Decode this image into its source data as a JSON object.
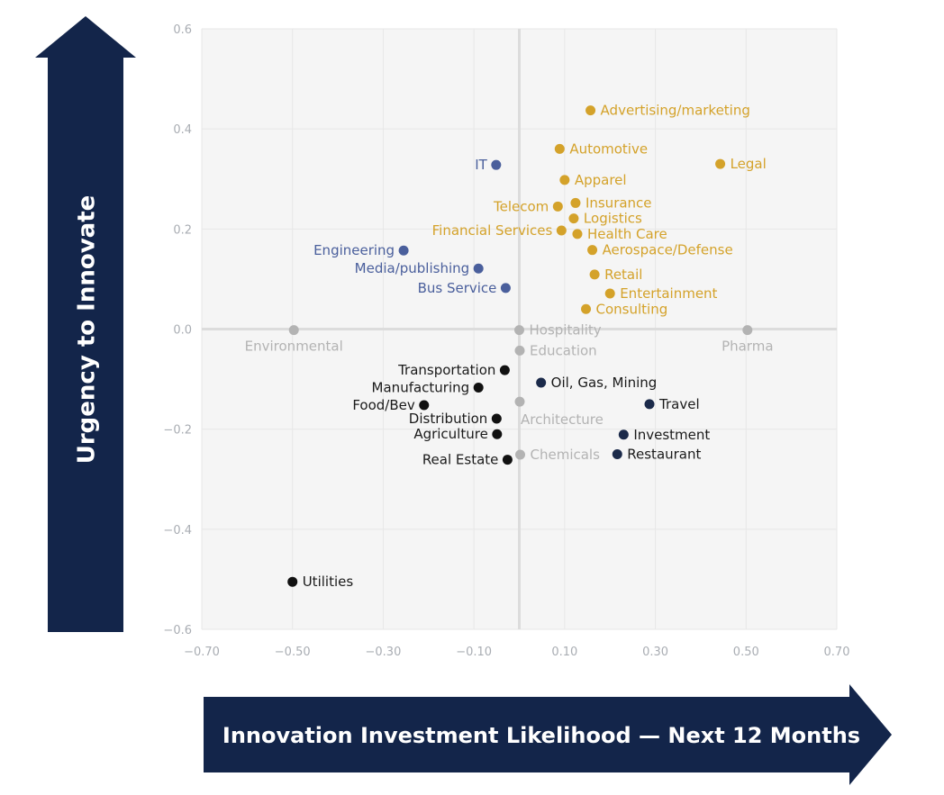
{
  "chart_data": {
    "type": "scatter",
    "xlabel": "Innovation Investment Likelihood — Next 12 Months",
    "ylabel": "Urgency to Innovate",
    "xlim": [
      -0.7,
      0.7
    ],
    "ylim": [
      -0.6,
      0.6
    ],
    "x_ticks": [
      -0.7,
      -0.5,
      -0.3,
      -0.1,
      0.1,
      0.3,
      0.5,
      0.7
    ],
    "x_tick_labels": [
      "−0.70",
      "−0.50",
      "−0.30",
      "−0.10",
      "0.10",
      "0.30",
      "0.50",
      "0.70"
    ],
    "y_ticks": [
      0.6,
      0.4,
      0.2,
      0.0,
      -0.2,
      -0.4,
      -0.6
    ],
    "y_tick_labels": [
      "0.6",
      "0.4",
      "0.2",
      "0.0",
      "−0.2",
      "−0.4",
      "−0.6"
    ],
    "grid": true,
    "colors": {
      "gold": "#d4a22a",
      "blue": "#4a5f9c",
      "gray": "#b3b3b3",
      "navy": "#1b2a4a",
      "black": "#111111",
      "plot_bg": "#f5f5f5",
      "grid": "#e7e7e7",
      "zero_line": "#dcdcdc",
      "arrow": "#13254a"
    },
    "points": [
      {
        "label": "Advertising/marketing",
        "x": 0.157,
        "y": 0.437,
        "color": "gold",
        "label_pos": "right"
      },
      {
        "label": "Automotive",
        "x": 0.089,
        "y": 0.36,
        "color": "gold",
        "label_pos": "right"
      },
      {
        "label": "Legal",
        "x": 0.443,
        "y": 0.33,
        "color": "gold",
        "label_pos": "right"
      },
      {
        "label": "Apparel",
        "x": 0.1,
        "y": 0.298,
        "color": "gold",
        "label_pos": "right"
      },
      {
        "label": "Telecom",
        "x": 0.085,
        "y": 0.245,
        "color": "gold",
        "label_pos": "left"
      },
      {
        "label": "Insurance",
        "x": 0.124,
        "y": 0.252,
        "color": "gold",
        "label_pos": "right"
      },
      {
        "label": "Logistics",
        "x": 0.12,
        "y": 0.221,
        "color": "gold",
        "label_pos": "right"
      },
      {
        "label": "Financial Services",
        "x": 0.093,
        "y": 0.197,
        "color": "gold",
        "label_pos": "left"
      },
      {
        "label": "Health Care",
        "x": 0.128,
        "y": 0.19,
        "color": "gold",
        "label_pos": "right"
      },
      {
        "label": "Aerospace/Defense",
        "x": 0.161,
        "y": 0.158,
        "color": "gold",
        "label_pos": "right"
      },
      {
        "label": "Retail",
        "x": 0.166,
        "y": 0.109,
        "color": "gold",
        "label_pos": "right"
      },
      {
        "label": "Entertainment",
        "x": 0.2,
        "y": 0.071,
        "color": "gold",
        "label_pos": "right"
      },
      {
        "label": "Consulting",
        "x": 0.147,
        "y": 0.04,
        "color": "gold",
        "label_pos": "right"
      },
      {
        "label": "IT",
        "x": -0.051,
        "y": 0.328,
        "color": "blue",
        "label_pos": "left"
      },
      {
        "label": "Engineering",
        "x": -0.255,
        "y": 0.157,
        "color": "blue",
        "label_pos": "left"
      },
      {
        "label": "Media/publishing",
        "x": -0.09,
        "y": 0.121,
        "color": "blue",
        "label_pos": "left"
      },
      {
        "label": "Bus Service",
        "x": -0.03,
        "y": 0.082,
        "color": "blue",
        "label_pos": "left"
      },
      {
        "label": "Environmental",
        "x": -0.497,
        "y": -0.002,
        "color": "gray",
        "label_pos": "below"
      },
      {
        "label": "Hospitality",
        "x": 0.0,
        "y": -0.002,
        "color": "gray",
        "label_pos": "right"
      },
      {
        "label": "Pharma",
        "x": 0.503,
        "y": -0.002,
        "color": "gray",
        "label_pos": "below"
      },
      {
        "label": "Education",
        "x": 0.001,
        "y": -0.043,
        "color": "gray",
        "label_pos": "right"
      },
      {
        "label": "Architecture",
        "x": 0.001,
        "y": -0.145,
        "color": "gray",
        "label_pos": "below-right"
      },
      {
        "label": "Chemicals",
        "x": 0.002,
        "y": -0.251,
        "color": "gray",
        "label_pos": "right"
      },
      {
        "label": "Transportation",
        "x": -0.032,
        "y": -0.082,
        "color": "black",
        "label_pos": "left"
      },
      {
        "label": "Manufacturing",
        "x": -0.09,
        "y": -0.117,
        "color": "black",
        "label_pos": "left"
      },
      {
        "label": "Food/Bev",
        "x": -0.21,
        "y": -0.152,
        "color": "black",
        "label_pos": "left"
      },
      {
        "label": "Distribution",
        "x": -0.05,
        "y": -0.179,
        "color": "black",
        "label_pos": "left"
      },
      {
        "label": "Agriculture",
        "x": -0.049,
        "y": -0.21,
        "color": "black",
        "label_pos": "left"
      },
      {
        "label": "Real Estate",
        "x": -0.026,
        "y": -0.261,
        "color": "black",
        "label_pos": "left"
      },
      {
        "label": "Utilities",
        "x": -0.5,
        "y": -0.505,
        "color": "black",
        "label_pos": "right"
      },
      {
        "label": "Oil, Gas, Mining",
        "x": 0.048,
        "y": -0.107,
        "color": "navy",
        "label_pos": "right"
      },
      {
        "label": "Travel",
        "x": 0.287,
        "y": -0.15,
        "color": "navy",
        "label_pos": "right"
      },
      {
        "label": "Investment",
        "x": 0.23,
        "y": -0.211,
        "color": "navy",
        "label_pos": "right"
      },
      {
        "label": "Restaurant",
        "x": 0.216,
        "y": -0.25,
        "color": "navy",
        "label_pos": "right"
      }
    ]
  }
}
